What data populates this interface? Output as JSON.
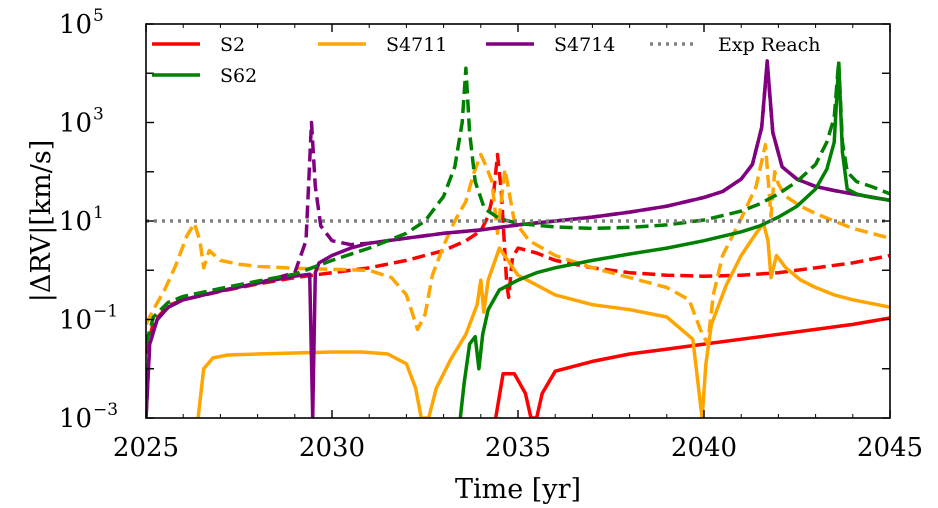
{
  "chart_data": {
    "type": "line",
    "title": "",
    "xlabel": "Time [yr]",
    "ylabel": "|ΔRV|[km/s]",
    "xlim": [
      2025,
      2045
    ],
    "ylim_log10": [
      -3,
      5
    ],
    "yscale": "log",
    "grid": false,
    "x_ticks": [
      2025,
      2030,
      2035,
      2040,
      2045
    ],
    "x_tick_labels": [
      "2025",
      "2030",
      "2035",
      "2040",
      "2045"
    ],
    "y_ticks_log10": [
      -3,
      -1,
      1,
      3,
      5
    ],
    "y_tick_labels": [
      {
        "base": "10",
        "exp": "−3"
      },
      {
        "base": "10",
        "exp": "−1"
      },
      {
        "base": "10",
        "exp": "1"
      },
      {
        "base": "10",
        "exp": "3"
      },
      {
        "base": "10",
        "exp": "5"
      }
    ],
    "legend": {
      "placement": "top",
      "entries": [
        {
          "label": "S2",
          "color": "#ff0000",
          "style": "solid"
        },
        {
          "label": "S4711",
          "color": "#ffa500",
          "style": "solid"
        },
        {
          "label": "S4714",
          "color": "#800080",
          "style": "solid"
        },
        {
          "label": "Exp Reach",
          "color": "#808080",
          "style": "dotted"
        },
        {
          "label": "S62",
          "color": "#008000",
          "style": "solid"
        }
      ]
    },
    "reference_line": {
      "name": "Exp Reach",
      "value": 10,
      "color": "#808080",
      "style": "dotted"
    },
    "series": [
      {
        "name": "S2",
        "style": "solid",
        "color": "#ff0000",
        "x": [
          2034.4,
          2034.6,
          2034.9,
          2035.2,
          2035.35,
          2035.5,
          2035.65,
          2036,
          2037,
          2038,
          2039,
          2040,
          2041,
          2042,
          2043,
          2044,
          2045
        ],
        "y_log10": [
          -3,
          -2.1,
          -2.1,
          -2.5,
          -3,
          -3,
          -2.5,
          -2.05,
          -1.85,
          -1.7,
          -1.6,
          -1.5,
          -1.4,
          -1.3,
          -1.2,
          -1.1,
          -0.97
        ]
      },
      {
        "name": "S2",
        "style": "dashed",
        "color": "#ff0000",
        "x": [
          2025,
          2025.2,
          2025.6,
          2026,
          2027,
          2028,
          2029,
          2030,
          2031,
          2032,
          2033,
          2033.6,
          2034.0,
          2034.2,
          2034.35,
          2034.45,
          2034.55,
          2034.7,
          2034.75,
          2034.85,
          2035,
          2035.5,
          2036,
          2037,
          2038,
          2039,
          2040,
          2041,
          2042,
          2043,
          2044,
          2045
        ],
        "y_log10": [
          -1.7,
          -1.05,
          -0.72,
          -0.6,
          -0.43,
          -0.28,
          -0.15,
          -0.05,
          0.05,
          0.2,
          0.4,
          0.6,
          0.8,
          1.1,
          1.6,
          2.35,
          1.6,
          -0.3,
          -0.55,
          0.25,
          0.45,
          0.35,
          0.2,
          0.05,
          -0.05,
          -0.1,
          -0.12,
          -0.1,
          -0.05,
          0.05,
          0.15,
          0.3
        ]
      },
      {
        "name": "S4711",
        "style": "solid",
        "color": "#ffa500",
        "x": [
          2026.4,
          2026.55,
          2026.8,
          2027.2,
          2028,
          2029,
          2030,
          2030.8,
          2031.5,
          2032,
          2032.25,
          2032.4,
          2032.6,
          2032.8,
          2033.2,
          2033.6,
          2033.9,
          2034.0,
          2034.08,
          2034.2,
          2034.5,
          2035,
          2036,
          2037,
          2038,
          2039,
          2039.7,
          2039.95,
          2040.05,
          2040.2,
          2040.6,
          2041.0,
          2041.4,
          2041.6,
          2041.72,
          2041.8,
          2041.95,
          2042.2,
          2042.6,
          2043,
          2043.5,
          2044,
          2045
        ],
        "y_log10": [
          -3,
          -2,
          -1.78,
          -1.72,
          -1.7,
          -1.68,
          -1.66,
          -1.66,
          -1.7,
          -1.9,
          -2.4,
          -3,
          -3,
          -2.4,
          -1.8,
          -1.3,
          -0.7,
          -0.2,
          -0.85,
          -0.2,
          0.45,
          -0.1,
          -0.5,
          -0.7,
          -0.8,
          -0.95,
          -1.4,
          -3,
          -1.9,
          -1.1,
          -0.3,
          0.3,
          0.75,
          0.95,
          0.6,
          -0.15,
          0.3,
          0.05,
          -0.2,
          -0.35,
          -0.5,
          -0.6,
          -0.75
        ]
      },
      {
        "name": "S4711",
        "style": "dashed",
        "color": "#ffa500",
        "x": [
          2025,
          2025.2,
          2025.5,
          2025.8,
          2026.1,
          2026.3,
          2026.45,
          2026.55,
          2026.7,
          2027,
          2027.5,
          2028,
          2029,
          2030,
          2031,
          2031.6,
          2032.0,
          2032.3,
          2032.5,
          2032.7,
          2033,
          2033.3,
          2033.6,
          2033.8,
          2034.0,
          2034.15,
          2034.3,
          2034.45,
          2034.65,
          2034.9,
          2035.3,
          2036,
          2037,
          2038,
          2039,
          2039.6,
          2039.9,
          2040.1,
          2040.25,
          2040.5,
          2041,
          2041.4,
          2041.65,
          2041.8,
          2041.9,
          2042.0,
          2042.2,
          2042.6,
          2043,
          2043.5,
          2044,
          2045
        ],
        "y_log10": [
          -1.1,
          -0.8,
          -0.4,
          0.1,
          0.7,
          0.95,
          0.6,
          0.05,
          0.4,
          0.2,
          0.12,
          0.08,
          0.04,
          0.02,
          0.0,
          -0.15,
          -0.5,
          -1.2,
          -0.9,
          -0.1,
          0.5,
          1.0,
          1.4,
          1.95,
          2.35,
          2.1,
          1.8,
          0.75,
          2.05,
          1.0,
          0.6,
          0.3,
          0.05,
          -0.15,
          -0.35,
          -0.6,
          -1.2,
          -1.5,
          -0.5,
          0.3,
          1.05,
          1.7,
          2.55,
          1.1,
          2.0,
          1.75,
          1.5,
          1.3,
          1.15,
          1.0,
          0.85,
          0.65
        ]
      },
      {
        "name": "S4714",
        "style": "solid",
        "color": "#800080",
        "x": [
          2025,
          2025.1,
          2025.3,
          2025.6,
          2026,
          2027,
          2028,
          2029,
          2029.4,
          2029.48,
          2029.55,
          2029.65,
          2030,
          2030.5,
          2031,
          2032,
          2033,
          2034,
          2035,
          2036,
          2037,
          2038,
          2039,
          2040,
          2040.5,
          2041,
          2041.3,
          2041.55,
          2041.7,
          2041.85,
          2042.1,
          2042.5,
          2043,
          2043.5,
          2044,
          2045
        ],
        "y_log10": [
          -3,
          -1.5,
          -1.0,
          -0.75,
          -0.6,
          -0.42,
          -0.26,
          -0.12,
          -0.08,
          -3,
          -0.05,
          0.15,
          0.3,
          0.45,
          0.55,
          0.65,
          0.75,
          0.82,
          0.92,
          1.0,
          1.08,
          1.18,
          1.3,
          1.48,
          1.6,
          1.85,
          2.15,
          2.9,
          4.25,
          2.8,
          2.1,
          1.85,
          1.7,
          1.62,
          1.55,
          1.42
        ]
      },
      {
        "name": "S4714",
        "style": "dashed",
        "color": "#800080",
        "x": [
          2025,
          2025.1,
          2025.3,
          2025.6,
          2026,
          2027,
          2028,
          2029,
          2029.3,
          2029.45,
          2029.55,
          2029.7,
          2030,
          2030.5,
          2031,
          2032,
          2033,
          2034,
          2035,
          2036,
          2037,
          2038,
          2039,
          2040,
          2040.5,
          2041,
          2041.3,
          2041.55,
          2041.7,
          2041.85,
          2042.1,
          2042.5,
          2043,
          2043.5,
          2044,
          2045
        ],
        "y_log10": [
          -3,
          -1.5,
          -1.0,
          -0.75,
          -0.6,
          -0.42,
          -0.26,
          -0.05,
          0.6,
          3.0,
          1.7,
          0.9,
          0.6,
          0.52,
          0.55,
          0.65,
          0.75,
          0.82,
          0.92,
          1.0,
          1.08,
          1.18,
          1.3,
          1.48,
          1.6,
          1.85,
          2.15,
          2.9,
          4.2,
          2.8,
          2.1,
          1.85,
          1.7,
          1.62,
          1.55,
          1.42
        ]
      },
      {
        "name": "S62",
        "style": "solid",
        "color": "#008000",
        "x": [
          2033.45,
          2033.55,
          2033.7,
          2033.85,
          2033.95,
          2034.05,
          2034.2,
          2034.5,
          2035,
          2035.5,
          2036,
          2037,
          2038,
          2039,
          2040,
          2041,
          2041.5,
          2042,
          2042.5,
          2043,
          2043.3,
          2043.5,
          2043.62,
          2043.72,
          2043.85,
          2044.1,
          2044.5,
          2045
        ],
        "y_log10": [
          -3,
          -2.3,
          -1.5,
          -1.35,
          -2.0,
          -1.3,
          -0.8,
          -0.4,
          -0.2,
          -0.05,
          0.05,
          0.2,
          0.33,
          0.45,
          0.6,
          0.78,
          0.9,
          1.08,
          1.3,
          1.65,
          2.05,
          2.6,
          4.2,
          2.4,
          1.65,
          1.55,
          1.48,
          1.42
        ]
      },
      {
        "name": "S62",
        "style": "dashed",
        "color": "#008000",
        "x": [
          2025,
          2025.2,
          2025.6,
          2026,
          2027,
          2028,
          2029,
          2030,
          2031,
          2032,
          2032.5,
          2033,
          2033.3,
          2033.5,
          2033.6,
          2033.7,
          2033.85,
          2034.1,
          2034.5,
          2035,
          2036,
          2037,
          2038,
          2039,
          2040,
          2041,
          2041.5,
          2042,
          2042.5,
          2043,
          2043.3,
          2043.5,
          2043.62,
          2043.72,
          2043.85,
          2044.1,
          2044.5,
          2045
        ],
        "y_log10": [
          -1.5,
          -0.95,
          -0.65,
          -0.53,
          -0.37,
          -0.22,
          -0.08,
          0.2,
          0.45,
          0.75,
          1.0,
          1.5,
          2.1,
          3.0,
          4.1,
          2.8,
          1.8,
          1.25,
          1.05,
          0.95,
          0.88,
          0.85,
          0.87,
          0.92,
          1.02,
          1.2,
          1.35,
          1.55,
          1.8,
          2.15,
          2.6,
          3.1,
          4.25,
          2.6,
          2.0,
          1.8,
          1.7,
          1.55
        ]
      }
    ]
  }
}
